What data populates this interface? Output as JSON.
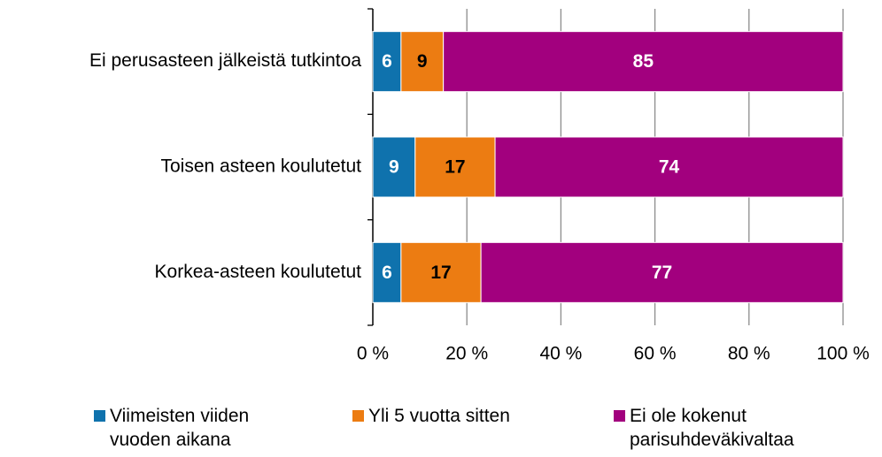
{
  "chart_data": {
    "type": "stacked-bar-horizontal",
    "categories": [
      "Ei perusasteen jälkeistä tutkintoa",
      "Toisen asteen koulutetut",
      "Korkea-asteen koulutetut"
    ],
    "series": [
      {
        "name": "Viimeisten viiden vuoden aikana",
        "color": "#0f72ad",
        "values": [
          6,
          9,
          6
        ]
      },
      {
        "name": "Yli 5 vuotta sitten",
        "color": "#ec7c12",
        "values": [
          9,
          17,
          17
        ]
      },
      {
        "name": "Ei ole kokenut parisuhdeväkivaltaa",
        "color": "#a2007e",
        "values": [
          85,
          74,
          77
        ]
      }
    ],
    "xlim": [
      0,
      100
    ],
    "xticks": [
      {
        "value": 0,
        "label": "0 %"
      },
      {
        "value": 20,
        "label": "20 %"
      },
      {
        "value": 40,
        "label": "40 %"
      },
      {
        "value": 60,
        "label": "60 %"
      },
      {
        "value": 80,
        "label": "80 %"
      },
      {
        "value": 100,
        "label": "100 %"
      }
    ],
    "grid": true,
    "legend": "bottom"
  }
}
